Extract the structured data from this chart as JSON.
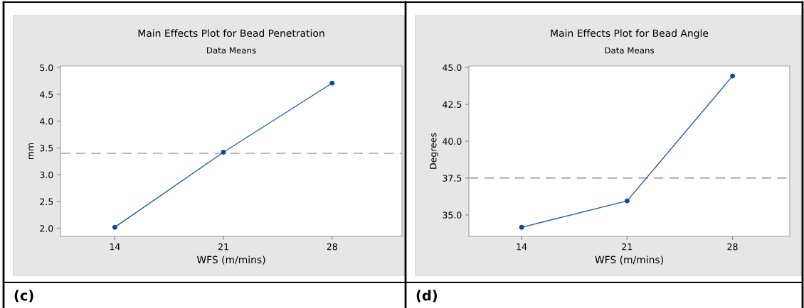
{
  "chart_data": [
    {
      "type": "line",
      "title": "Main Effects Plot for Bead Penetration",
      "subtitle": "Data Means",
      "xlabel": "WFS (m/mins)",
      "ylabel": "mm",
      "x": [
        14,
        21,
        28
      ],
      "series": [
        {
          "color": "#1f5fb0",
          "values": [
            2.02,
            3.42,
            4.71
          ]
        }
      ],
      "xlim": [
        10.5,
        32.5
      ],
      "xticks": [
        14,
        21,
        28
      ],
      "ylim": [
        1.85,
        5.03
      ],
      "yticks": [
        {
          "value": 2.0,
          "label": "2.0"
        },
        {
          "value": 2.5,
          "label": "2.5"
        },
        {
          "value": 3.0,
          "label": "3.0"
        },
        {
          "value": 3.5,
          "label": "3.5"
        },
        {
          "value": 4.0,
          "label": "4.0"
        },
        {
          "value": 4.5,
          "label": "4.5"
        },
        {
          "value": 5.0,
          "label": "5.0"
        }
      ],
      "ref_lines": [
        {
          "axis": "y",
          "value": 3.4,
          "color": "#a6a6a6",
          "line_style": "dashed"
        }
      ],
      "marker": "circle",
      "line_style": "solid",
      "grid": false,
      "legend": false,
      "annotations": [
        "(c)"
      ]
    },
    {
      "type": "line",
      "title": "Main Effects Plot for Bead Angle",
      "subtitle": "Data Means",
      "xlabel": "WFS (m/mins)",
      "ylabel": "Degrees",
      "x": [
        14,
        21,
        28
      ],
      "series": [
        {
          "color": "#1f5fb0",
          "values": [
            34.16,
            35.95,
            44.42
          ]
        }
      ],
      "xlim": [
        10.5,
        31.8
      ],
      "xticks": [
        14,
        21,
        28
      ],
      "ylim": [
        33.55,
        45.1
      ],
      "yticks": [
        {
          "value": 35.0,
          "label": "35.0"
        },
        {
          "value": 37.5,
          "label": "37.5"
        },
        {
          "value": 40.0,
          "label": "40.0"
        },
        {
          "value": 42.5,
          "label": "42.5"
        },
        {
          "value": 45.0,
          "label": "45.0"
        }
      ],
      "ref_lines": [
        {
          "axis": "y",
          "value": 37.5,
          "color": "#a6a6a6",
          "line_style": "dashed"
        }
      ],
      "marker": "circle",
      "line_style": "solid",
      "grid": false,
      "legend": false,
      "annotations": [
        "(d)"
      ]
    }
  ]
}
